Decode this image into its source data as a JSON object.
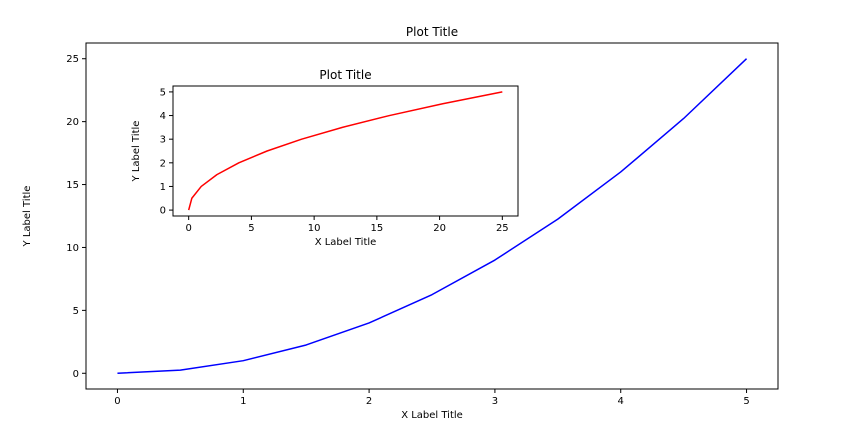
{
  "chart_data": [
    {
      "type": "line",
      "title": "Plot Title",
      "xlabel": "X Label Title",
      "ylabel": "Y Label Title",
      "xlim": [
        -0.25,
        5.25
      ],
      "ylim": [
        -1.25,
        26.25
      ],
      "xticks": [
        0,
        1,
        2,
        3,
        4,
        5
      ],
      "yticks": [
        0,
        5,
        10,
        15,
        20,
        25
      ],
      "grid": false,
      "series": [
        {
          "color": "#0000ff",
          "x": [
            0,
            0.5,
            1,
            1.5,
            2,
            2.5,
            3,
            3.5,
            4,
            4.5,
            5
          ],
          "y": [
            0,
            0.25,
            1,
            2.25,
            4,
            6.25,
            9,
            12.25,
            16,
            20.25,
            25
          ]
        }
      ]
    },
    {
      "type": "line",
      "title": "Plot Title",
      "xlabel": "X Label Title",
      "ylabel": "Y Label Title",
      "xlim": [
        -1.25,
        26.25
      ],
      "ylim": [
        -0.25,
        5.25
      ],
      "xticks": [
        0,
        5,
        10,
        15,
        20,
        25
      ],
      "yticks": [
        0,
        1,
        2,
        3,
        4,
        5
      ],
      "grid": false,
      "series": [
        {
          "color": "#ff0000",
          "x": [
            0,
            0.25,
            1,
            2.25,
            4,
            6.25,
            9,
            12.25,
            16,
            20.25,
            25
          ],
          "y": [
            0,
            0.5,
            1,
            1.5,
            2,
            2.5,
            3,
            3.5,
            4,
            4.5,
            5
          ]
        }
      ]
    }
  ]
}
